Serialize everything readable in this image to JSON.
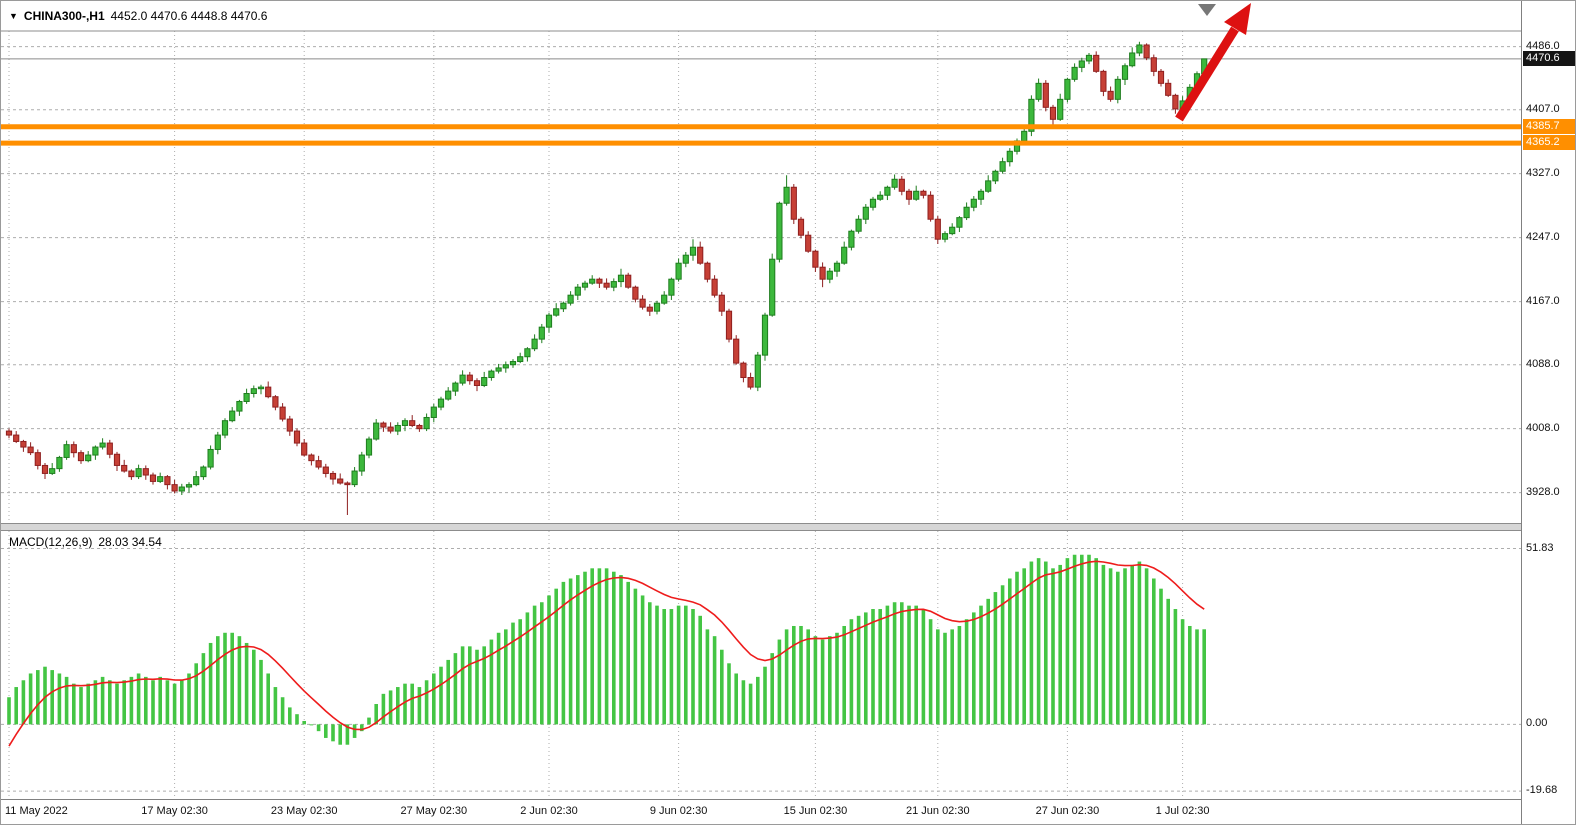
{
  "header": {
    "symbol": "CHINA300-,H1",
    "ohlc": "4452.0 4470.6 4448.8 4470.6"
  },
  "indicator": {
    "label": "MACD(12,26,9)",
    "values": "28.03 34.54"
  },
  "colors": {
    "up": "#3cb83c",
    "up_dark": "#1e7d1e",
    "down": "#c64036",
    "down_dark": "#8f1f1f",
    "hist": "#44c544",
    "signal": "#ee1c1c",
    "level": "#ff8f00",
    "grid": "#adadad",
    "price_line": "#8a8a8a",
    "arrow": "#dd1111",
    "marker": "#777777",
    "badge_price_bg": "#151515",
    "badge_level_bg": "#ff8f00"
  },
  "chart_data": [
    {
      "type": "candlestick",
      "title": "CHINA300- H1",
      "y_domain": [
        3890,
        4538
      ],
      "grid": true,
      "y_ticks": [
        {
          "v": 4486.0,
          "label": "4486.0"
        },
        {
          "v": 4407.0,
          "label": "4407.0"
        },
        {
          "v": 4327.0,
          "label": "4327.0"
        },
        {
          "v": 4247.0,
          "label": "4247.0"
        },
        {
          "v": 4167.0,
          "label": "4167.0"
        },
        {
          "v": 4088.0,
          "label": "4088.0"
        },
        {
          "v": 4008.0,
          "label": "4008.0"
        },
        {
          "v": 3928.0,
          "label": "3928.0"
        }
      ],
      "price_line": {
        "v": 4470.6,
        "label": "4470.6"
      },
      "levels": [
        {
          "v": 4385.7,
          "label": "4385.7"
        },
        {
          "v": 4365.2,
          "label": "4365.2"
        }
      ],
      "x_labels": [
        {
          "i": 0,
          "label": "11 May 2022"
        },
        {
          "i": 23,
          "label": "17 May 02:30"
        },
        {
          "i": 41,
          "label": "23 May 02:30"
        },
        {
          "i": 59,
          "label": "27 May 02:30"
        },
        {
          "i": 75,
          "label": "2 Jun 02:30"
        },
        {
          "i": 93,
          "label": "9 Jun 02:30"
        },
        {
          "i": 112,
          "label": "15 Jun 02:30"
        },
        {
          "i": 129,
          "label": "21 Jun 02:30"
        },
        {
          "i": 147,
          "label": "27 Jun 02:30"
        },
        {
          "i": 163,
          "label": "1 Jul 02:30"
        }
      ],
      "candles": [
        [
          4005,
          4008,
          3996,
          4000
        ],
        [
          4000,
          4005,
          3990,
          3992
        ],
        [
          3992,
          3994,
          3979,
          3985
        ],
        [
          3985,
          3991,
          3975,
          3978
        ],
        [
          3978,
          3982,
          3957,
          3962
        ],
        [
          3962,
          3965,
          3945,
          3952
        ],
        [
          3952,
          3965,
          3950,
          3958
        ],
        [
          3958,
          3974,
          3954,
          3972
        ],
        [
          3972,
          3993,
          3969,
          3988
        ],
        [
          3988,
          3992,
          3972,
          3978
        ],
        [
          3978,
          3981,
          3964,
          3968
        ],
        [
          3968,
          3980,
          3966,
          3975
        ],
        [
          3975,
          3987,
          3969,
          3985
        ],
        [
          3985,
          3996,
          3982,
          3990
        ],
        [
          3990,
          3994,
          3971,
          3976
        ],
        [
          3976,
          3979,
          3955,
          3962
        ],
        [
          3962,
          3969,
          3953,
          3955
        ],
        [
          3955,
          3957,
          3944,
          3948
        ],
        [
          3948,
          3963,
          3945,
          3958
        ],
        [
          3958,
          3962,
          3944,
          3950
        ],
        [
          3950,
          3953,
          3938,
          3942
        ],
        [
          3942,
          3953,
          3940,
          3948
        ],
        [
          3948,
          3950,
          3932,
          3938
        ],
        [
          3938,
          3944,
          3927,
          3930
        ],
        [
          3930,
          3939,
          3925,
          3935
        ],
        [
          3935,
          3941,
          3928,
          3938
        ],
        [
          3938,
          3955,
          3936,
          3948
        ],
        [
          3948,
          3962,
          3944,
          3960
        ],
        [
          3960,
          3987,
          3957,
          3982
        ],
        [
          3982,
          4004,
          3976,
          4000
        ],
        [
          4000,
          4021,
          3996,
          4018
        ],
        [
          4018,
          4035,
          4016,
          4030
        ],
        [
          4030,
          4044,
          4024,
          4042
        ],
        [
          4042,
          4058,
          4039,
          4052
        ],
        [
          4052,
          4062,
          4047,
          4058
        ],
        [
          4058,
          4063,
          4051,
          4060
        ],
        [
          4060,
          4067,
          4046,
          4048
        ],
        [
          4048,
          4050,
          4031,
          4035
        ],
        [
          4035,
          4040,
          4017,
          4020
        ],
        [
          4020,
          4024,
          3999,
          4005
        ],
        [
          4005,
          4008,
          3986,
          3990
        ],
        [
          3990,
          3995,
          3973,
          3975
        ],
        [
          3975,
          3977,
          3962,
          3968
        ],
        [
          3968,
          3974,
          3957,
          3960
        ],
        [
          3960,
          3964,
          3947,
          3952
        ],
        [
          3952,
          3955,
          3938,
          3945
        ],
        [
          3945,
          3952,
          3938,
          3940
        ],
        [
          3940,
          3942,
          3900,
          3938
        ],
        [
          3938,
          3960,
          3935,
          3955
        ],
        [
          3955,
          3979,
          3949,
          3975
        ],
        [
          3975,
          3998,
          3971,
          3995
        ],
        [
          3995,
          4020,
          3993,
          4015
        ],
        [
          4015,
          4017,
          4004,
          4010
        ],
        [
          4010,
          4016,
          4002,
          4005
        ],
        [
          4005,
          4016,
          4000,
          4012
        ],
        [
          4012,
          4021,
          4005,
          4018
        ],
        [
          4018,
          4025,
          4010,
          4012
        ],
        [
          4012,
          4014,
          4004,
          4008
        ],
        [
          4008,
          4027,
          4005,
          4022
        ],
        [
          4022,
          4039,
          4016,
          4035
        ],
        [
          4035,
          4048,
          4031,
          4045
        ],
        [
          4045,
          4060,
          4043,
          4055
        ],
        [
          4055,
          4067,
          4049,
          4065
        ],
        [
          4065,
          4081,
          4062,
          4075
        ],
        [
          4075,
          4079,
          4063,
          4068
        ],
        [
          4068,
          4071,
          4055,
          4062
        ],
        [
          4062,
          4079,
          4060,
          4072
        ],
        [
          4072,
          4082,
          4068,
          4080
        ],
        [
          4080,
          4089,
          4077,
          4084
        ],
        [
          4084,
          4092,
          4078,
          4088
        ],
        [
          4088,
          4095,
          4084,
          4092
        ],
        [
          4092,
          4103,
          4090,
          4098
        ],
        [
          4098,
          4110,
          4092,
          4108
        ],
        [
          4108,
          4126,
          4105,
          4120
        ],
        [
          4120,
          4139,
          4115,
          4135
        ],
        [
          4135,
          4153,
          4128,
          4150
        ],
        [
          4150,
          4165,
          4148,
          4158
        ],
        [
          4158,
          4167,
          4154,
          4165
        ],
        [
          4165,
          4180,
          4162,
          4175
        ],
        [
          4175,
          4189,
          4169,
          4185
        ],
        [
          4185,
          4193,
          4181,
          4190
        ],
        [
          4190,
          4200,
          4188,
          4195
        ],
        [
          4195,
          4197,
          4184,
          4190
        ],
        [
          4190,
          4196,
          4182,
          4185
        ],
        [
          4185,
          4196,
          4180,
          4192
        ],
        [
          4192,
          4208,
          4185,
          4200
        ],
        [
          4200,
          4203,
          4183,
          4185
        ],
        [
          4185,
          4187,
          4166,
          4170
        ],
        [
          4170,
          4175,
          4157,
          4160
        ],
        [
          4160,
          4164,
          4149,
          4155
        ],
        [
          4155,
          4168,
          4151,
          4165
        ],
        [
          4165,
          4180,
          4163,
          4175
        ],
        [
          4175,
          4197,
          4169,
          4195
        ],
        [
          4195,
          4221,
          4192,
          4215
        ],
        [
          4215,
          4229,
          4210,
          4225
        ],
        [
          4225,
          4245,
          4218,
          4235
        ],
        [
          4235,
          4242,
          4213,
          4215
        ],
        [
          4215,
          4217,
          4191,
          4195
        ],
        [
          4195,
          4200,
          4172,
          4175
        ],
        [
          4175,
          4179,
          4149,
          4155
        ],
        [
          4155,
          4158,
          4116,
          4120
        ],
        [
          4120,
          4125,
          4088,
          4090
        ],
        [
          4090,
          4092,
          4066,
          4072
        ],
        [
          4072,
          4078,
          4057,
          4060
        ],
        [
          4060,
          4104,
          4055,
          4100
        ],
        [
          4100,
          4153,
          4093,
          4150
        ],
        [
          4150,
          4227,
          4148,
          4220
        ],
        [
          4220,
          4292,
          4216,
          4290
        ],
        [
          4290,
          4325,
          4287,
          4310
        ],
        [
          4310,
          4314,
          4264,
          4270
        ],
        [
          4270,
          4273,
          4246,
          4250
        ],
        [
          4250,
          4255,
          4228,
          4230
        ],
        [
          4230,
          4232,
          4204,
          4210
        ],
        [
          4210,
          4216,
          4185,
          4195
        ],
        [
          4195,
          4209,
          4190,
          4205
        ],
        [
          4205,
          4218,
          4198,
          4215
        ],
        [
          4215,
          4242,
          4213,
          4235
        ],
        [
          4235,
          4257,
          4231,
          4255
        ],
        [
          4255,
          4275,
          4252,
          4270
        ],
        [
          4270,
          4289,
          4264,
          4285
        ],
        [
          4285,
          4298,
          4281,
          4295
        ],
        [
          4295,
          4305,
          4293,
          4300
        ],
        [
          4300,
          4312,
          4294,
          4310
        ],
        [
          4310,
          4326,
          4307,
          4320
        ],
        [
          4320,
          4324,
          4300,
          4305
        ],
        [
          4305,
          4308,
          4288,
          4295
        ],
        [
          4295,
          4312,
          4293,
          4305
        ],
        [
          4305,
          4307,
          4296,
          4300
        ],
        [
          4300,
          4305,
          4267,
          4270
        ],
        [
          4270,
          4274,
          4239,
          4245
        ],
        [
          4245,
          4255,
          4241,
          4252
        ],
        [
          4252,
          4265,
          4250,
          4260
        ],
        [
          4260,
          4274,
          4254,
          4272
        ],
        [
          4272,
          4291,
          4269,
          4285
        ],
        [
          4285,
          4299,
          4280,
          4295
        ],
        [
          4295,
          4308,
          4288,
          4305
        ],
        [
          4305,
          4325,
          4303,
          4318
        ],
        [
          4318,
          4332,
          4314,
          4330
        ],
        [
          4330,
          4347,
          4327,
          4342
        ],
        [
          4342,
          4359,
          4336,
          4355
        ],
        [
          4355,
          4371,
          4351,
          4368
        ],
        [
          4368,
          4385,
          4366,
          4380
        ],
        [
          4380,
          4425,
          4374,
          4420
        ],
        [
          4420,
          4446,
          4417,
          4440
        ],
        [
          4440,
          4444,
          4405,
          4410
        ],
        [
          4410,
          4413,
          4388,
          4395
        ],
        [
          4395,
          4427,
          4393,
          4420
        ],
        [
          4420,
          4447,
          4416,
          4445
        ],
        [
          4445,
          4465,
          4442,
          4460
        ],
        [
          4460,
          4472,
          4454,
          4468
        ],
        [
          4468,
          4478,
          4464,
          4475
        ],
        [
          4475,
          4480,
          4453,
          4455
        ],
        [
          4455,
          4457,
          4424,
          4430
        ],
        [
          4430,
          4436,
          4417,
          4420
        ],
        [
          4420,
          4449,
          4415,
          4445
        ],
        [
          4445,
          4465,
          4438,
          4462
        ],
        [
          4462,
          4485,
          4460,
          4478
        ],
        [
          4478,
          4492,
          4474,
          4488
        ],
        [
          4488,
          4490,
          4469,
          4472
        ],
        [
          4472,
          4476,
          4449,
          4455
        ],
        [
          4455,
          4458,
          4436,
          4440
        ],
        [
          4440,
          4445,
          4423,
          4425
        ],
        [
          4425,
          4427,
          4402,
          4408
        ],
        [
          4408,
          4424,
          4405,
          4418
        ],
        [
          4418,
          4439,
          4413,
          4435
        ],
        [
          4435,
          4455,
          4428,
          4452
        ],
        [
          4452,
          4470.6,
          4448.8,
          4470.6
        ]
      ]
    },
    {
      "type": "bar",
      "title": "MACD(12,26,9)",
      "macd_value": 28.03,
      "signal_value": 34.54,
      "y_domain": [
        -22,
        57
      ],
      "y_ticks": [
        {
          "v": 51.83,
          "label": "51.83"
        },
        {
          "v": 0,
          "label": "0.00"
        },
        {
          "v": -19.68,
          "label": "-19.68"
        }
      ],
      "signal_seed": -10,
      "signal_alpha": 0.2,
      "hist": [
        8,
        11,
        13,
        15,
        16,
        17,
        16,
        15,
        14,
        12,
        11,
        12,
        13,
        14,
        13,
        12,
        13,
        14,
        15,
        14,
        13,
        14,
        13,
        12,
        13,
        15,
        18,
        21,
        24,
        26,
        27,
        27,
        26,
        24,
        22,
        19,
        15,
        11,
        8,
        5,
        3,
        1,
        0,
        -2,
        -4,
        -5,
        -6,
        -6,
        -4,
        -2,
        2,
        6,
        9,
        10,
        11,
        12,
        12,
        11,
        13,
        15,
        17,
        19,
        21,
        23,
        23,
        22,
        23,
        25,
        27,
        28,
        30,
        31,
        33,
        35,
        36,
        38,
        40,
        42,
        43,
        44,
        45,
        46,
        46,
        46,
        45,
        44,
        42,
        40,
        38,
        36,
        35,
        34,
        34,
        35,
        35,
        34,
        32,
        28,
        26,
        22,
        18,
        15,
        13,
        12,
        14,
        17,
        21,
        25,
        28,
        29,
        29,
        28,
        26,
        25,
        26,
        27,
        29,
        31,
        32,
        33,
        34,
        34,
        35,
        36,
        36,
        35,
        35,
        34,
        31,
        28,
        27,
        28,
        29,
        31,
        33,
        35,
        37,
        39,
        41,
        43,
        45,
        46,
        48,
        49,
        48,
        46,
        47,
        49,
        50,
        50,
        50,
        49,
        47,
        46,
        45,
        46,
        47,
        48,
        46,
        43,
        40,
        37,
        34,
        31,
        29,
        28,
        28.03
      ]
    }
  ]
}
